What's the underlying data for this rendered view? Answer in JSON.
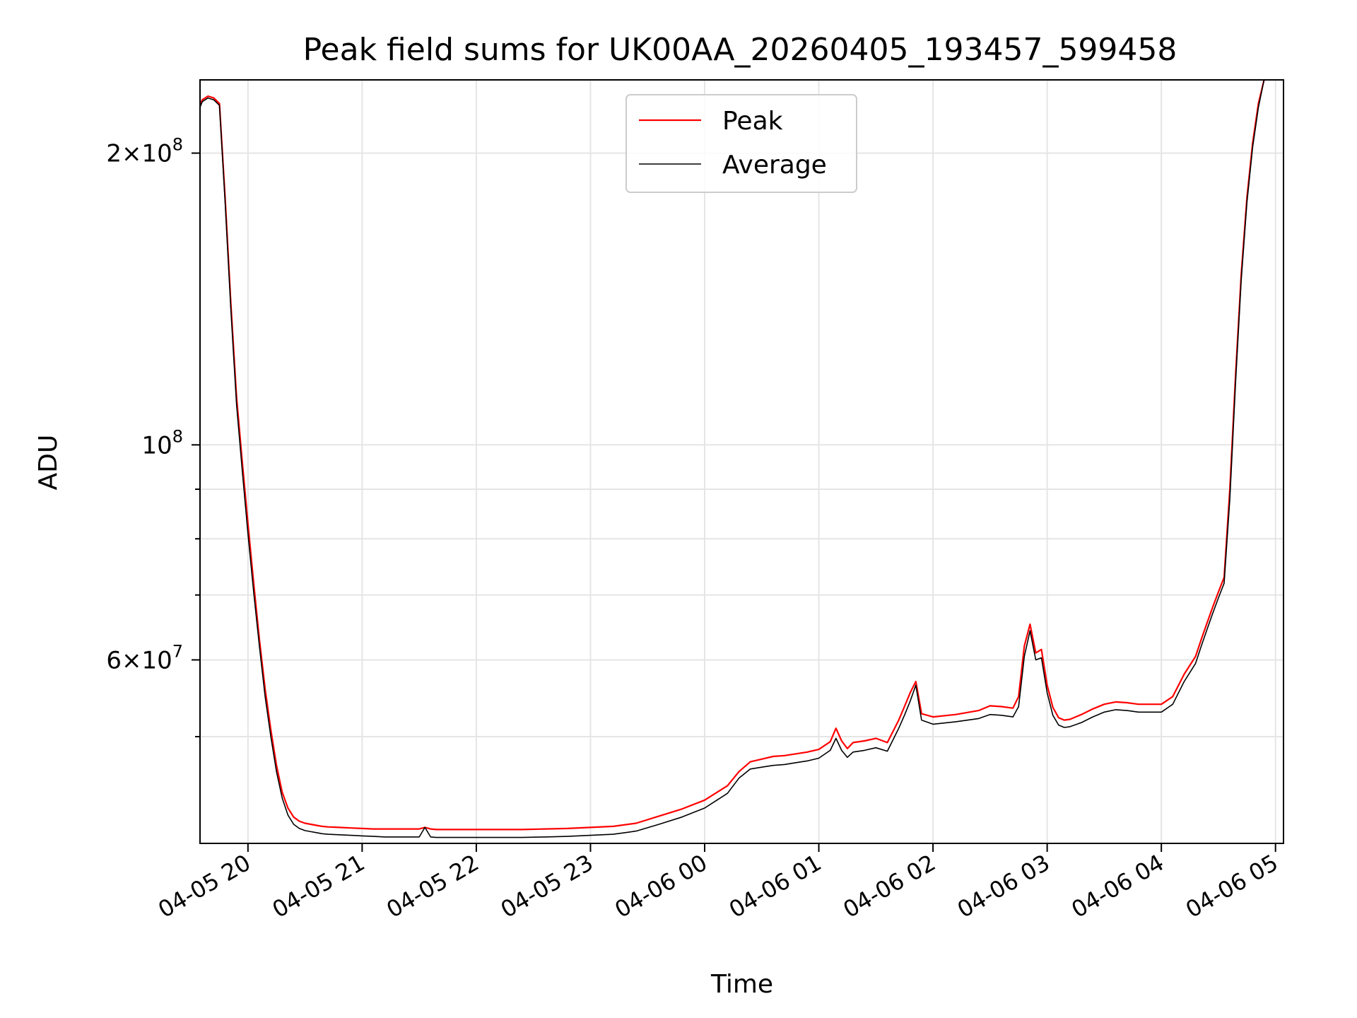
{
  "chart_data": {
    "type": "line",
    "title": "Peak field sums for UK00AA_20260405_193457_599458",
    "xlabel": "Time",
    "ylabel": "ADU",
    "yscale": "log",
    "ylim": [
      38800000,
      238000000
    ],
    "xlim_hours": [
      -0.42,
      9.07
    ],
    "x_ticks": [
      {
        "hours": 0,
        "label": "04-05 20"
      },
      {
        "hours": 1,
        "label": "04-05 21"
      },
      {
        "hours": 2,
        "label": "04-05 22"
      },
      {
        "hours": 3,
        "label": "04-05 23"
      },
      {
        "hours": 4,
        "label": "04-06 00"
      },
      {
        "hours": 5,
        "label": "04-06 01"
      },
      {
        "hours": 6,
        "label": "04-06 02"
      },
      {
        "hours": 7,
        "label": "04-06 03"
      },
      {
        "hours": 8,
        "label": "04-06 04"
      },
      {
        "hours": 9,
        "label": "04-06 05"
      }
    ],
    "y_major_ticks": [
      {
        "value": 200000000,
        "mantissa": "2",
        "base": "10",
        "exp": "8"
      },
      {
        "value": 100000000,
        "mantissa": "",
        "base": "10",
        "exp": "8"
      },
      {
        "value": 60000000,
        "mantissa": "6",
        "base": "10",
        "exp": "7"
      }
    ],
    "y_minor_ticks": [
      50000000,
      70000000,
      80000000,
      90000000
    ],
    "legend": {
      "position": "upper center"
    },
    "series": [
      {
        "name": "Peak",
        "color": "#ff0000",
        "role": "peak",
        "x_hours": [
          -0.42,
          -0.4,
          -0.35,
          -0.3,
          -0.25,
          -0.2,
          -0.15,
          -0.1,
          -0.05,
          0,
          0.05,
          0.1,
          0.15,
          0.2,
          0.25,
          0.3,
          0.35,
          0.4,
          0.45,
          0.5,
          0.55,
          0.6,
          0.65,
          0.7,
          0.8,
          0.9,
          1,
          1.1,
          1.2,
          1.3,
          1.4,
          1.5,
          1.55,
          1.6,
          1.65,
          1.7,
          1.8,
          1.9,
          2,
          2.2,
          2.4,
          2.6,
          2.8,
          3,
          3.2,
          3.4,
          3.6,
          3.8,
          4,
          4.2,
          4.3,
          4.4,
          4.5,
          4.6,
          4.7,
          4.8,
          4.9,
          5,
          5.1,
          5.15,
          5.2,
          5.25,
          5.3,
          5.4,
          5.5,
          5.6,
          5.7,
          5.75,
          5.8,
          5.85,
          5.9,
          6,
          6.2,
          6.4,
          6.5,
          6.6,
          6.7,
          6.75,
          6.8,
          6.85,
          6.9,
          6.95,
          7,
          7.05,
          7.1,
          7.15,
          7.2,
          7.3,
          7.4,
          7.5,
          7.6,
          7.7,
          7.8,
          7.9,
          8,
          8.1,
          8.2,
          8.3,
          8.35,
          8.4,
          8.45,
          8.5,
          8.55,
          8.6,
          8.65,
          8.7,
          8.75,
          8.8,
          8.85,
          8.9
        ],
        "values": [
          224000000,
          227000000,
          229000000,
          228000000,
          225000000,
          180000000,
          140000000,
          112000000,
          96000000,
          83000000,
          72000000,
          63000000,
          56000000,
          50800000,
          46700000,
          43800000,
          42200000,
          41300000,
          40900000,
          40700000,
          40600000,
          40500000,
          40400000,
          40350000,
          40300000,
          40250000,
          40200000,
          40150000,
          40150000,
          40150000,
          40150000,
          40150000,
          40300000,
          40150000,
          40100000,
          40100000,
          40100000,
          40100000,
          40100000,
          40100000,
          40100000,
          40150000,
          40200000,
          40300000,
          40400000,
          40700000,
          41400000,
          42100000,
          43000000,
          44500000,
          46000000,
          47100000,
          47400000,
          47700000,
          47800000,
          48000000,
          48200000,
          48500000,
          49400000,
          51000000,
          49500000,
          48600000,
          49300000,
          49500000,
          49800000,
          49300000,
          52000000,
          53700000,
          55500000,
          57000000,
          52800000,
          52400000,
          52700000,
          53200000,
          53800000,
          53700000,
          53500000,
          55000000,
          62000000,
          65300000,
          61000000,
          61500000,
          56500000,
          53600000,
          52300000,
          52000000,
          52100000,
          52700000,
          53400000,
          54000000,
          54300000,
          54200000,
          54000000,
          54000000,
          54000000,
          55000000,
          58000000,
          60500000,
          63000000,
          65500000,
          68000000,
          70500000,
          73000000,
          90000000,
          118000000,
          150000000,
          180000000,
          205000000,
          225000000,
          238000000
        ]
      },
      {
        "name": "Average",
        "color": "#000000",
        "role": "average",
        "x_hours": [
          -0.42,
          -0.4,
          -0.35,
          -0.3,
          -0.25,
          -0.2,
          -0.15,
          -0.1,
          -0.05,
          0,
          0.05,
          0.1,
          0.15,
          0.2,
          0.25,
          0.3,
          0.35,
          0.4,
          0.45,
          0.5,
          0.55,
          0.6,
          0.65,
          0.7,
          0.8,
          0.9,
          1,
          1.1,
          1.2,
          1.3,
          1.4,
          1.5,
          1.55,
          1.6,
          1.65,
          1.7,
          1.8,
          1.9,
          2,
          2.2,
          2.4,
          2.6,
          2.8,
          3,
          3.2,
          3.4,
          3.6,
          3.8,
          4,
          4.2,
          4.3,
          4.4,
          4.5,
          4.6,
          4.7,
          4.8,
          4.9,
          5,
          5.1,
          5.15,
          5.2,
          5.25,
          5.3,
          5.4,
          5.5,
          5.6,
          5.7,
          5.75,
          5.8,
          5.85,
          5.9,
          6,
          6.2,
          6.4,
          6.5,
          6.6,
          6.7,
          6.75,
          6.8,
          6.85,
          6.9,
          6.95,
          7,
          7.05,
          7.1,
          7.15,
          7.2,
          7.3,
          7.4,
          7.5,
          7.6,
          7.7,
          7.8,
          7.9,
          8,
          8.1,
          8.2,
          8.3,
          8.35,
          8.4,
          8.45,
          8.5,
          8.55,
          8.6,
          8.65,
          8.7,
          8.75,
          8.8,
          8.85,
          8.9
        ],
        "values": [
          223000000,
          226000000,
          228000000,
          227000000,
          224000000,
          178000000,
          138000000,
          110000000,
          94000000,
          81000000,
          70500000,
          62000000,
          55000000,
          50000000,
          46000000,
          43200000,
          41500000,
          40600000,
          40200000,
          40000000,
          39900000,
          39800000,
          39700000,
          39650000,
          39600000,
          39550000,
          39500000,
          39450000,
          39400000,
          39400000,
          39400000,
          39400000,
          40300000,
          39400000,
          39350000,
          39350000,
          39350000,
          39350000,
          39350000,
          39350000,
          39350000,
          39400000,
          39450000,
          39550000,
          39650000,
          39950000,
          40600000,
          41300000,
          42200000,
          43700000,
          45300000,
          46300000,
          46500000,
          46700000,
          46800000,
          47000000,
          47200000,
          47500000,
          48400000,
          49800000,
          48400000,
          47600000,
          48200000,
          48400000,
          48700000,
          48300000,
          51000000,
          52600000,
          54400000,
          56500000,
          52000000,
          51500000,
          51800000,
          52200000,
          52700000,
          52600000,
          52400000,
          53700000,
          60500000,
          64300000,
          60000000,
          60300000,
          55500000,
          52600000,
          51400000,
          51100000,
          51200000,
          51700000,
          52400000,
          53000000,
          53300000,
          53200000,
          53000000,
          53000000,
          53000000,
          54000000,
          57000000,
          59500000,
          62000000,
          64500000,
          67000000,
          69500000,
          72000000,
          88000000,
          116000000,
          148000000,
          178000000,
          203000000,
          223000000,
          238000000
        ]
      }
    ]
  }
}
